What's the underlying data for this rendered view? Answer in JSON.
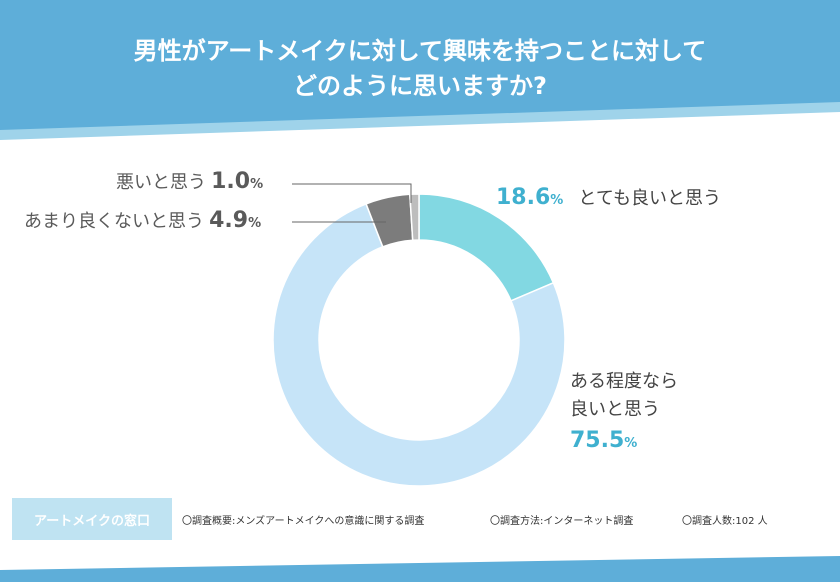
{
  "title_line1": "男性がアートメイクに対して興味を持つことに対して",
  "title_line2": "どのように思いますか?",
  "chart_data": {
    "type": "pie",
    "variant": "donut",
    "title": "男性がアートメイクに対して興味を持つことに対してどのように思いますか?",
    "categories": [
      "とても良いと思う",
      "ある程度なら良いと思う",
      "あまり良くないと思う",
      "悪いと思う"
    ],
    "values": [
      18.6,
      75.5,
      4.9,
      1.0
    ],
    "unit": "%",
    "colors": [
      "#82d8e2",
      "#c6e4f8",
      "#7c7c7c",
      "#bdbdbd"
    ]
  },
  "labels": {
    "very_good": {
      "pct": "18.6",
      "sfx": "%",
      "text": "とても良いと思う"
    },
    "somewhat_good_line1": "ある程度なら",
    "somewhat_good_line2": "良いと思う",
    "somewhat_good_pct": "75.5",
    "somewhat_good_sfx": "%",
    "not_good": {
      "text": "あまり良くないと思う",
      "pct": "4.9",
      "sfx": "%"
    },
    "bad": {
      "text": "悪いと思う",
      "pct": "1.0",
      "sfx": "%"
    }
  },
  "footer": {
    "brand": "アートメイクの窓口",
    "overview": "〇調査概要:メンズアートメイクへの意識に関する調査",
    "method": "〇調査方法:インターネット調査",
    "count": "〇調査人数:102 人"
  },
  "colors": {
    "header": "#5eaed9",
    "header_light": "#9fd3ea",
    "accent": "#3fb0cf"
  }
}
